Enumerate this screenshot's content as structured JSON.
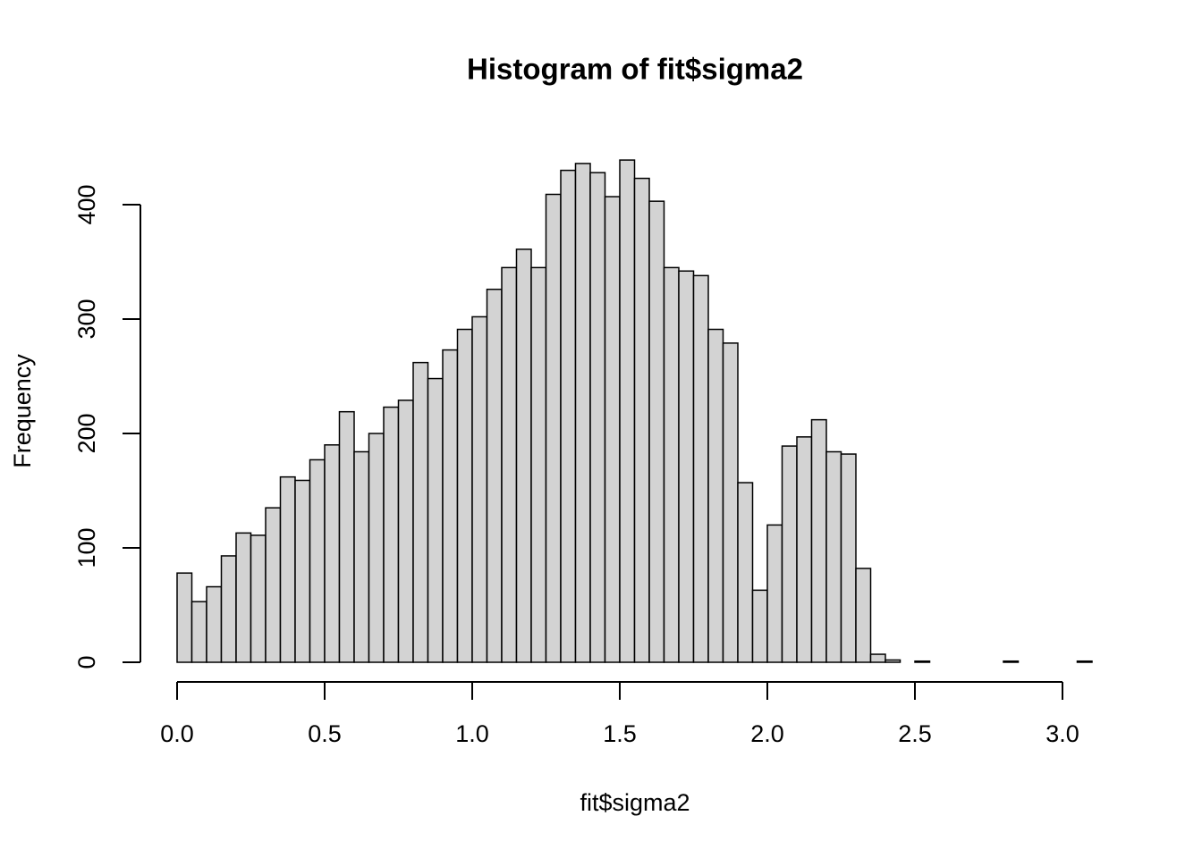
{
  "chart_data": {
    "type": "histogram",
    "title": "Histogram of fit$sigma2",
    "x_label": "fit$sigma2",
    "y_label": "Frequency",
    "bins": [
      0,
      0.05,
      0.1,
      0.15,
      0.2,
      0.25,
      0.3,
      0.35,
      0.4,
      0.45,
      0.5,
      0.55,
      0.6,
      0.65,
      0.7,
      0.75,
      0.8,
      0.85,
      0.9,
      0.95,
      1,
      1.05,
      1.1,
      1.15,
      1.2,
      1.25,
      1.3,
      1.35,
      1.4,
      1.45,
      1.5,
      1.55,
      1.6,
      1.65,
      1.7,
      1.75,
      1.8,
      1.85,
      1.9,
      1.95,
      2,
      2.05,
      2.1,
      2.15,
      2.2,
      2.25,
      2.3,
      2.35,
      2.4,
      2.45,
      2.5,
      2.55,
      2.6,
      2.65,
      2.7,
      2.75,
      2.8,
      2.85,
      2.9,
      2.95,
      3,
      3.05,
      3.1
    ],
    "values": [
      78,
      53,
      66,
      93,
      113,
      111,
      135,
      162,
      159,
      177,
      190,
      219,
      184,
      200,
      223,
      229,
      262,
      248,
      273,
      291,
      302,
      326,
      345,
      361,
      345,
      409,
      430,
      436,
      428,
      407,
      439,
      423,
      403,
      345,
      342,
      338,
      291,
      279,
      157,
      63,
      120,
      189,
      197,
      212,
      184,
      182,
      82,
      7,
      2,
      0,
      1,
      0,
      0,
      0,
      0,
      0,
      1,
      0,
      0,
      0,
      0,
      1
    ],
    "color": "#d3d3d3",
    "xlim": [
      0,
      3.1
    ],
    "ylim": [
      0,
      400
    ],
    "xticks": [
      {
        "value": 0,
        "label": "0.0"
      },
      0.5,
      {
        "value": 1,
        "label": "1.0"
      },
      1.5,
      {
        "value": 2,
        "label": "2.0"
      },
      2.5,
      {
        "value": 3,
        "label": "3.0"
      }
    ],
    "yticks": [
      0,
      100,
      200,
      300,
      400
    ]
  }
}
